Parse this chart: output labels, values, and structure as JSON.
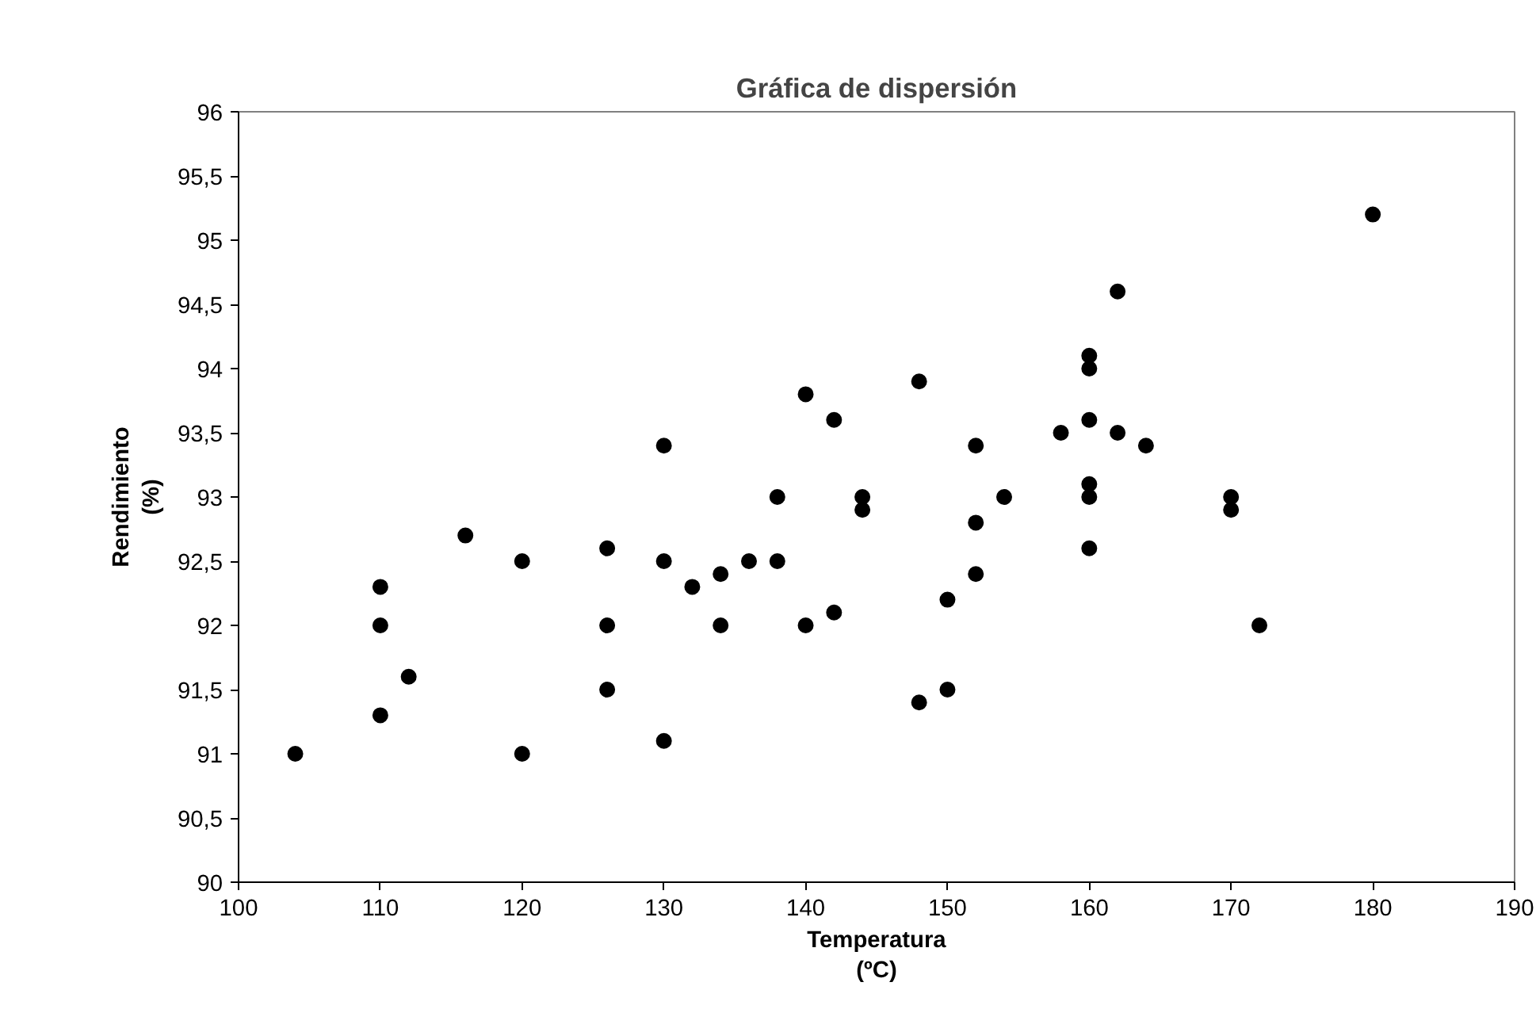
{
  "chart_data": {
    "type": "scatter",
    "title": "Gráfica de dispersión",
    "xlabel": "Temperatura\n(ºC)",
    "ylabel": "Rendimiento\n(%)",
    "xlim": [
      100,
      190
    ],
    "xticks": [
      100,
      110,
      120,
      130,
      140,
      150,
      160,
      170,
      180,
      190
    ],
    "ylim": [
      90,
      96
    ],
    "yticks": [
      90,
      {
        "value": 90.5,
        "label": "90,5"
      },
      91,
      {
        "value": 91.5,
        "label": "91,5"
      },
      92,
      {
        "value": 92.5,
        "label": "92,5"
      },
      93,
      {
        "value": 93.5,
        "label": "93,5"
      },
      94,
      {
        "value": 94.5,
        "label": "94,5"
      },
      95,
      {
        "value": 95.5,
        "label": "95,5"
      },
      96
    ],
    "grid": false,
    "marker": "circle",
    "series": [
      {
        "color": "#000000",
        "x": [
          104,
          110,
          110,
          110,
          112,
          116,
          120,
          120,
          126,
          126,
          126,
          130,
          130,
          130,
          132,
          134,
          134,
          136,
          138,
          138,
          140,
          140,
          142,
          142,
          144,
          144,
          148,
          148,
          150,
          150,
          152,
          152,
          152,
          154,
          158,
          160,
          160,
          160,
          160,
          160,
          160,
          162,
          162,
          164,
          170,
          170,
          172,
          180
        ],
        "values": [
          91.0,
          92.3,
          92.0,
          91.3,
          91.6,
          92.7,
          92.5,
          91.0,
          92.6,
          92.0,
          91.5,
          93.4,
          92.5,
          91.1,
          92.3,
          92.4,
          92.0,
          92.5,
          93.0,
          92.5,
          93.8,
          92.0,
          93.6,
          92.1,
          93.0,
          92.9,
          93.9,
          91.4,
          92.2,
          91.5,
          93.4,
          92.8,
          92.4,
          93.0,
          93.5,
          94.1,
          94.0,
          93.6,
          93.1,
          93.0,
          92.6,
          94.6,
          93.5,
          93.4,
          93.0,
          92.9,
          92.0,
          95.2
        ]
      }
    ]
  }
}
